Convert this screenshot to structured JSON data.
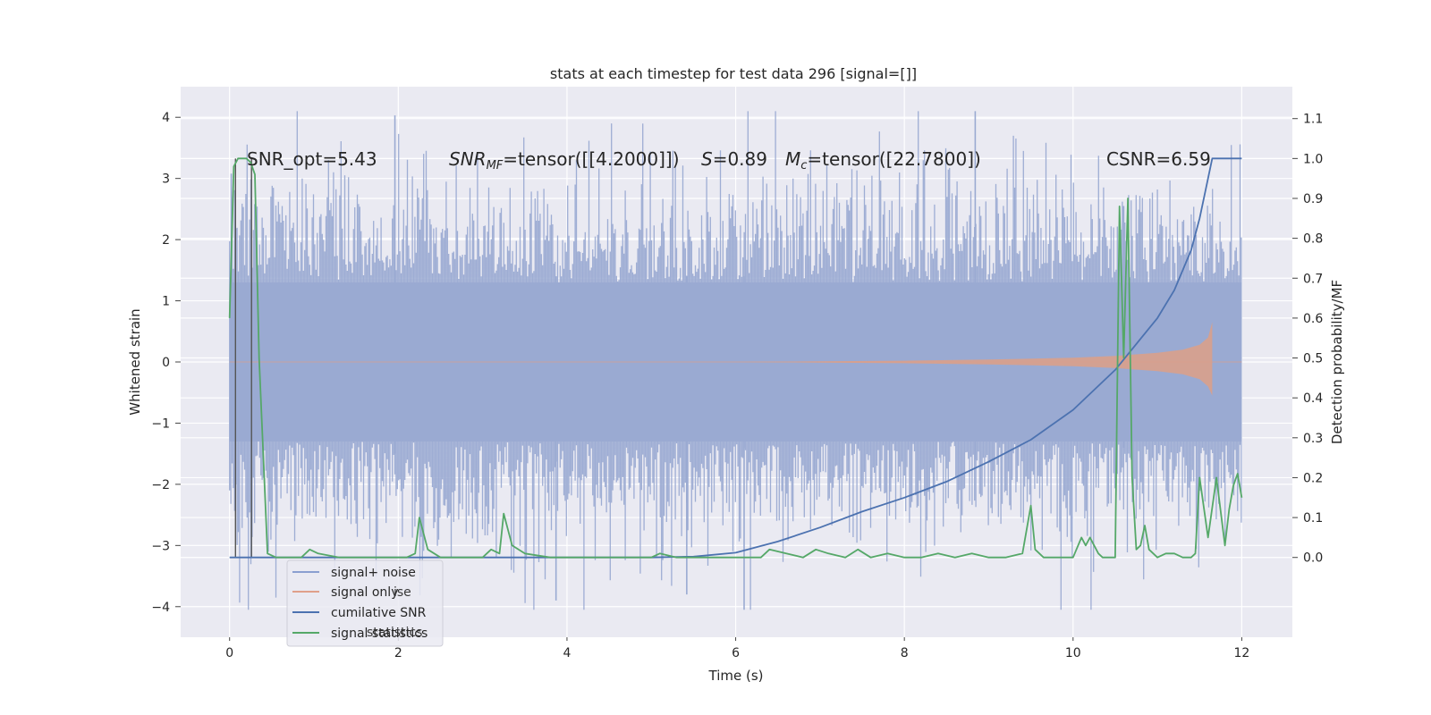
{
  "chart_data": {
    "type": "line",
    "title": "stats at each timestep for test data 296 [signal=[]]",
    "xlabel": "Time (s)",
    "ylabel": "Whitened strain",
    "y2label": "Detection probability/MF",
    "xlim": [
      -0.58,
      12.6
    ],
    "ylim": [
      -4.5,
      4.5
    ],
    "y2lim": [
      -0.2,
      1.18
    ],
    "xticks": [
      0,
      2,
      4,
      6,
      8,
      10,
      12
    ],
    "xtick_labels": [
      "0",
      "2",
      "4",
      "6",
      "8",
      "10",
      "12"
    ],
    "yticks": [
      4,
      3,
      2,
      1,
      0,
      -1,
      -2,
      -3,
      -4
    ],
    "ytick_labels": [
      "4",
      "3",
      "2",
      "1",
      "0",
      "−1",
      "−2",
      "−3",
      "−4"
    ],
    "y2ticks": [
      1.1,
      1.0,
      0.9,
      0.8,
      0.7,
      0.6,
      0.5,
      0.4,
      0.3,
      0.2,
      0.1,
      0.0
    ],
    "y2tick_labels": [
      "1.1",
      "1.0",
      "0.9",
      "0.8",
      "0.7",
      "0.6",
      "0.5",
      "0.4",
      "0.3",
      "0.2",
      "0.1",
      "0.0"
    ],
    "annotations": {
      "snr_opt": "SNR_opt=5.43",
      "snr_mf_prefix": "SNR",
      "snr_mf_sub": "MF",
      "snr_mf_value": "=tensor([[4.2000]])",
      "s_label": "S",
      "s_value": "=0.89",
      "mc_prefix": "M",
      "mc_sub": "c",
      "mc_value": "=tensor([22.7800])",
      "csnr": "CSNR=6.59"
    },
    "legend": {
      "position": "lower-left",
      "entries": [
        {
          "label": "signal+ noise",
          "color": "#8a9fd0"
        },
        {
          "label": "signal only",
          "color": "#e0a08a"
        },
        {
          "label": "cumilative SNR",
          "color": "#4c72b0"
        },
        {
          "label": "signal statistics",
          "color": "#55a868"
        }
      ],
      "ghost_entries": [
        "ise",
        "statistics"
      ]
    },
    "series": [
      {
        "name": "signal+ noise",
        "axis": "left",
        "color": "#9aaad2",
        "x_range": [
          0,
          12
        ],
        "envelope": {
          "core_lo": -1.3,
          "core_hi": 1.3,
          "spike_min": -4.05,
          "spike_max": 4.1
        }
      },
      {
        "name": "signal only",
        "axis": "left",
        "color": "#d9a08b",
        "x": [
          6.0,
          7.0,
          8.0,
          9.0,
          10.0,
          10.5,
          11.0,
          11.3,
          11.5,
          11.6,
          11.65
        ],
        "upper": [
          0.0,
          0.01,
          0.02,
          0.04,
          0.07,
          0.1,
          0.15,
          0.2,
          0.28,
          0.4,
          0.65
        ],
        "lower": [
          0.0,
          -0.01,
          -0.02,
          -0.04,
          -0.07,
          -0.1,
          -0.15,
          -0.2,
          -0.28,
          -0.4,
          -0.55
        ]
      },
      {
        "name": "cumilative SNR",
        "axis": "right",
        "color": "#4c72b0",
        "x": [
          0,
          5.0,
          5.5,
          6.0,
          6.5,
          7.0,
          7.5,
          8.0,
          8.5,
          9.0,
          9.5,
          10.0,
          10.5,
          11.0,
          11.2,
          11.4,
          11.5,
          11.6,
          11.65,
          12.0
        ],
        "y": [
          0.0,
          0.0,
          0.002,
          0.012,
          0.04,
          0.075,
          0.115,
          0.15,
          0.19,
          0.24,
          0.295,
          0.37,
          0.47,
          0.6,
          0.67,
          0.77,
          0.85,
          0.95,
          1.0,
          1.0
        ]
      },
      {
        "name": "signal statistics",
        "axis": "right",
        "color": "#55a868",
        "x": [
          0,
          0.05,
          0.1,
          0.15,
          0.2,
          0.25,
          0.3,
          0.35,
          0.45,
          0.55,
          0.7,
          0.85,
          0.95,
          1.05,
          1.3,
          1.6,
          1.9,
          2.1,
          2.2,
          2.25,
          2.35,
          2.5,
          2.8,
          3.0,
          3.1,
          3.2,
          3.25,
          3.35,
          3.5,
          3.8,
          4.2,
          4.6,
          5.0,
          5.1,
          5.3,
          5.6,
          6.0,
          6.3,
          6.4,
          6.6,
          6.8,
          6.95,
          7.1,
          7.3,
          7.45,
          7.6,
          7.8,
          8.0,
          8.2,
          8.4,
          8.6,
          8.8,
          9.0,
          9.2,
          9.4,
          9.5,
          9.55,
          9.65,
          9.8,
          10.0,
          10.1,
          10.15,
          10.2,
          10.3,
          10.35,
          10.5,
          10.55,
          10.6,
          10.65,
          10.7,
          10.75,
          10.8,
          10.85,
          10.9,
          11.0,
          11.1,
          11.2,
          11.3,
          11.4,
          11.45,
          11.5,
          11.6,
          11.7,
          11.8,
          11.85,
          11.9,
          11.95,
          12.0
        ],
        "y": [
          0.6,
          0.98,
          1.0,
          1.0,
          1.0,
          0.99,
          0.96,
          0.5,
          0.01,
          0.0,
          0.0,
          0.0,
          0.02,
          0.01,
          0.0,
          0.0,
          0.0,
          0.0,
          0.01,
          0.1,
          0.02,
          0.0,
          0.0,
          0.0,
          0.02,
          0.01,
          0.11,
          0.03,
          0.01,
          0.0,
          0.0,
          0.0,
          0.0,
          0.01,
          0.0,
          0.0,
          0.0,
          0.0,
          0.02,
          0.01,
          0.0,
          0.02,
          0.01,
          0.0,
          0.02,
          0.0,
          0.01,
          0.0,
          0.0,
          0.01,
          0.0,
          0.01,
          0.0,
          0.0,
          0.01,
          0.13,
          0.02,
          0.0,
          0.0,
          0.0,
          0.05,
          0.03,
          0.05,
          0.01,
          0.0,
          0.0,
          0.88,
          0.5,
          0.9,
          0.2,
          0.02,
          0.03,
          0.08,
          0.02,
          0.0,
          0.01,
          0.01,
          0.0,
          0.0,
          0.01,
          0.2,
          0.05,
          0.2,
          0.03,
          0.12,
          0.18,
          0.21,
          0.15
        ]
      }
    ],
    "vlines": [
      0.07,
      0.26
    ]
  }
}
